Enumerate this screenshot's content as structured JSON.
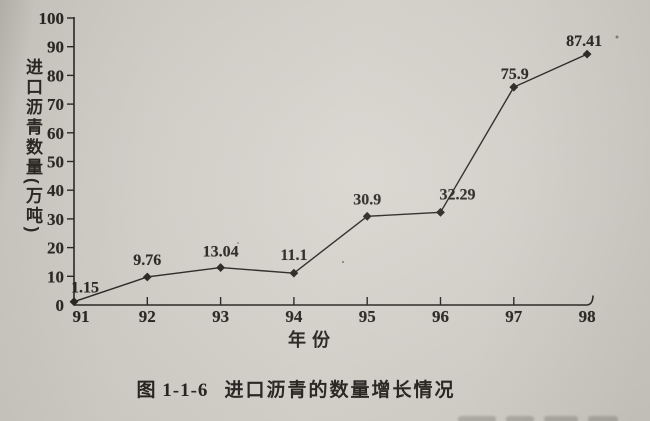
{
  "figure": {
    "caption_label": "图 1-1-6",
    "caption_text": "进口沥青的数量增长情况"
  },
  "colors": {
    "paper": "#d3d0c9",
    "ink": "#24211d"
  },
  "chart_data": {
    "type": "line",
    "title": "图1-1-6 进口沥青的数量增长情况",
    "xlabel": "年份",
    "ylabel": "进口沥青数量(万吨)",
    "categories": [
      "91",
      "92",
      "93",
      "94",
      "95",
      "96",
      "97",
      "98"
    ],
    "values": [
      1.15,
      9.76,
      13.04,
      11.1,
      30.9,
      32.29,
      75.9,
      87.41
    ],
    "point_labels": [
      "1.15",
      "9.76",
      "13.04",
      "11.1",
      "30.9",
      "32.29",
      "75.9",
      "87.41"
    ],
    "ylim": [
      0,
      100
    ],
    "yticks": [
      0,
      10,
      20,
      30,
      40,
      50,
      60,
      70,
      80,
      90,
      100
    ],
    "grid": false,
    "legend": "none",
    "marker": "diamond",
    "line_color": "#24211d"
  }
}
